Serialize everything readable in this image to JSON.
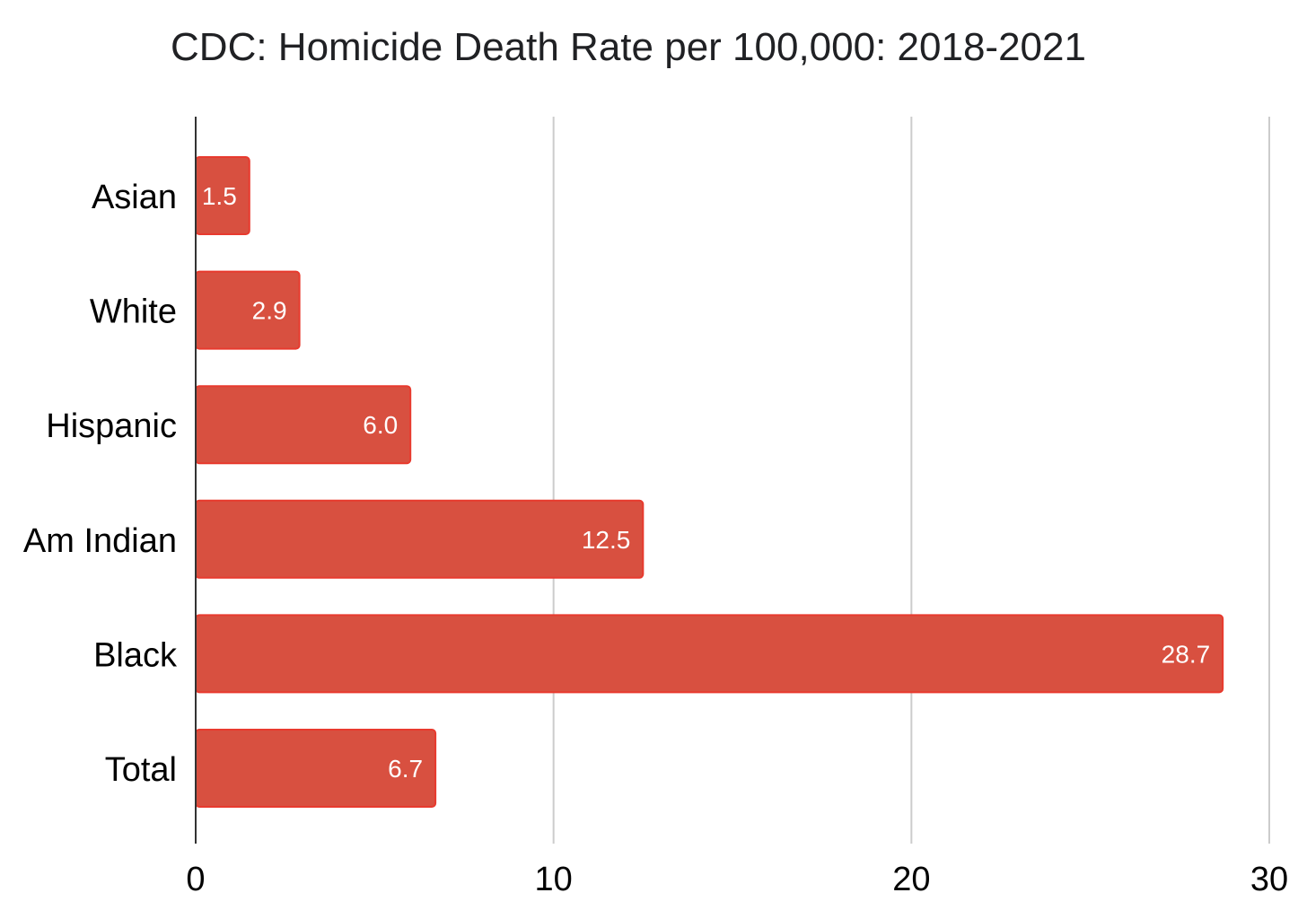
{
  "chart_data": {
    "type": "bar",
    "orientation": "horizontal",
    "title": "CDC: Homicide Death Rate per 100,000: 2018-2021",
    "categories": [
      "Asian",
      "White",
      "Hispanic",
      "Am Indian",
      "Black",
      "Total"
    ],
    "values": [
      1.5,
      2.9,
      6.0,
      12.5,
      28.7,
      6.7
    ],
    "data_labels": [
      "1.5",
      "2.9",
      "6.0",
      "12.5",
      "28.7",
      "6.7"
    ],
    "xlim": [
      0,
      30
    ],
    "x_ticks": [
      0,
      10,
      20,
      30
    ],
    "x_tick_labels": [
      "0",
      "10",
      "20",
      "30"
    ],
    "xlabel": "",
    "ylabel": "",
    "grid": "vertical",
    "legend": "none",
    "bar_color": "#d85040",
    "bar_border_color": "#e83a2e",
    "label_color": "#ffffff",
    "grid_color": "#cccccc",
    "axis_color": "#333333"
  }
}
